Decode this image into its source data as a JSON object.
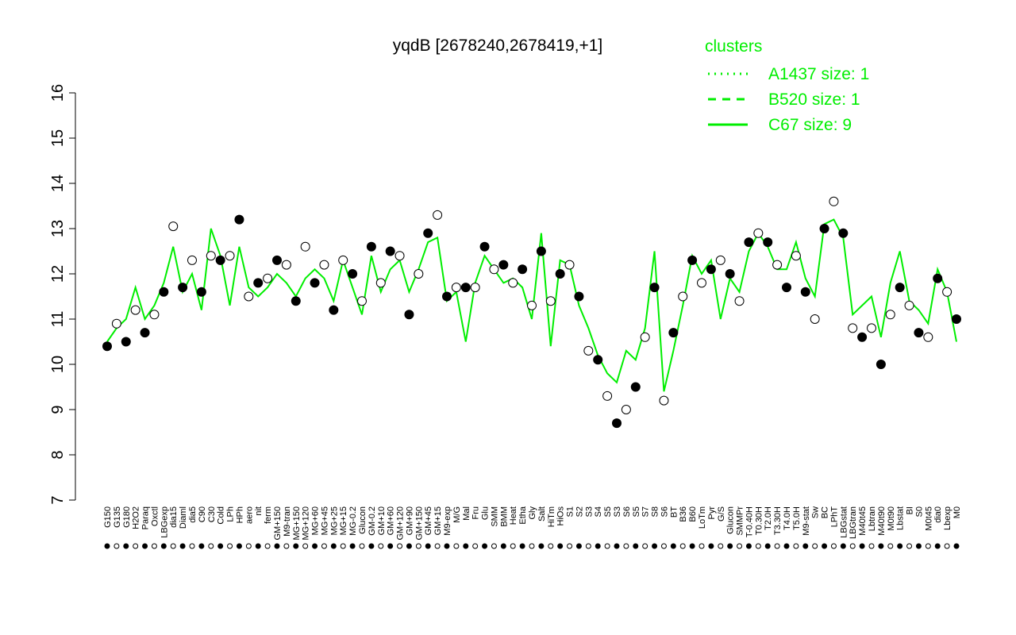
{
  "chart_data": {
    "type": "line",
    "title": "yqdB [2678240,2678419,+1]",
    "legend_title": "clusters",
    "legend_position": "top-right",
    "ylim": [
      7,
      16
    ],
    "yticks": [
      7,
      8,
      9,
      10,
      11,
      12,
      13,
      14,
      15,
      16
    ],
    "categories": [
      "G150",
      "G135",
      "G180",
      "H2O2",
      "Paraq",
      "Oxctl",
      "LBGexp",
      "dia15",
      "Diaml",
      "dia5",
      "C90",
      "C30",
      "Cold",
      "LPh",
      "HPh",
      "aero",
      "nit",
      "ferm",
      "GM+150",
      "M9-tran",
      "MG+150",
      "MG+120",
      "MG+60",
      "MG+45",
      "MG+25",
      "MG+15",
      "MG-0.2",
      "Glucon",
      "GM-0.2",
      "GM+10",
      "GM+60",
      "GM+120",
      "GM+90",
      "GM+150",
      "GM+45",
      "GM+15",
      "M9-exp",
      "M/G",
      "Mal",
      "Fru",
      "Glu",
      "SMM",
      "BMM",
      "Heat",
      "Etha",
      "Gly",
      "Salt",
      "HiTm",
      "HiOs",
      "S1",
      "S2",
      "S3",
      "S4",
      "S5",
      "S3",
      "S6",
      "S5",
      "S7",
      "S8",
      "S6",
      "BT",
      "B36",
      "B60",
      "LoTm",
      "Pyr",
      "G/S",
      "Glucon",
      "SMMPr",
      "T-0.40H",
      "T0.30H",
      "T2.0H",
      "T3.30H",
      "T4.0H",
      "T5.0H",
      "M9-stat",
      "Sw",
      "BC",
      "LPhT",
      "LBGstat",
      "LBGtran",
      "M40t45",
      "Lbtran",
      "M40t90",
      "M0t90",
      "Lbstat",
      "BI",
      "S0",
      "M0t45",
      "dia0",
      "Lbexp",
      "M0"
    ],
    "values": [
      10.4,
      10.9,
      10.5,
      11.2,
      10.7,
      11.1,
      11.6,
      13.05,
      11.7,
      12.3,
      11.6,
      12.4,
      12.3,
      12.4,
      13.2,
      11.5,
      11.8,
      11.9,
      12.3,
      12.2,
      11.4,
      12.6,
      11.8,
      12.2,
      11.2,
      12.3,
      12.0,
      11.4,
      12.6,
      11.8,
      12.5,
      12.4,
      11.1,
      12.0,
      12.9,
      13.3,
      11.5,
      11.7,
      11.7,
      11.7,
      12.6,
      12.1,
      12.2,
      11.8,
      12.1,
      11.3,
      12.5,
      11.4,
      12.0,
      12.2,
      11.5,
      10.3,
      10.1,
      9.3,
      8.7,
      9.0,
      9.5,
      10.6,
      11.7,
      9.2,
      10.7,
      11.5,
      12.3,
      11.8,
      12.1,
      12.3,
      12.0,
      11.4,
      12.7,
      12.9,
      12.7,
      12.2,
      11.7,
      12.4,
      11.6,
      11.0,
      13.0,
      13.6,
      12.9,
      10.8,
      10.6,
      10.8,
      10.0,
      11.1,
      11.7,
      11.3,
      10.7,
      10.6,
      11.9,
      11.6,
      11.0
    ],
    "series": [
      {
        "name": "A1437 size: 1",
        "color": "#00ee00",
        "style": "dotted"
      },
      {
        "name": "B520 size: 1",
        "color": "#00ee00",
        "style": "dashed"
      },
      {
        "name": "C67 size: 9",
        "color": "#00ee00",
        "style": "solid",
        "values": [
          10.5,
          10.8,
          11.0,
          11.7,
          11.0,
          11.3,
          11.8,
          12.6,
          11.6,
          12.0,
          11.2,
          13.0,
          12.4,
          11.3,
          12.6,
          11.7,
          11.5,
          11.7,
          12.0,
          11.8,
          11.5,
          11.9,
          12.1,
          11.9,
          11.4,
          12.3,
          11.7,
          11.1,
          12.4,
          11.6,
          12.1,
          12.3,
          11.6,
          12.1,
          12.7,
          12.8,
          11.4,
          11.6,
          10.5,
          11.8,
          12.4,
          12.1,
          11.8,
          11.9,
          11.7,
          11.0,
          12.9,
          10.4,
          12.3,
          12.2,
          11.3,
          10.8,
          10.2,
          9.8,
          9.6,
          10.3,
          10.1,
          10.8,
          12.5,
          9.4,
          10.3,
          11.3,
          12.4,
          12.0,
          12.3,
          11.0,
          11.9,
          11.6,
          12.5,
          12.9,
          12.6,
          12.1,
          12.1,
          12.7,
          11.9,
          11.5,
          13.1,
          13.2,
          12.8,
          11.1,
          11.3,
          11.5,
          10.6,
          11.8,
          12.5,
          11.4,
          11.2,
          10.9,
          12.1,
          11.6,
          10.5
        ]
      }
    ]
  }
}
